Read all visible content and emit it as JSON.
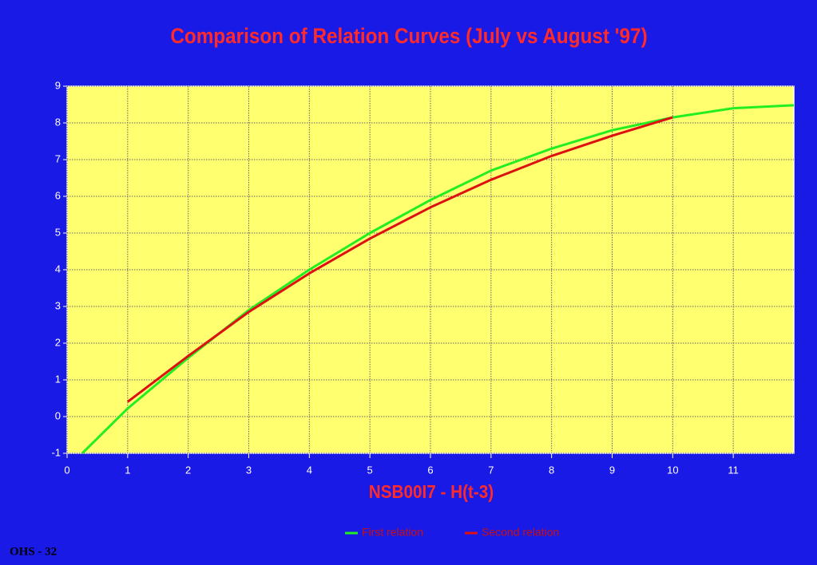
{
  "chart_data": {
    "type": "line",
    "title": "Comparison of Relation Curves (July vs August '97)",
    "x_label": "NSB00I7 - H(t-3)",
    "x": [
      0.25,
      1,
      2,
      3,
      4,
      5,
      6,
      7,
      8,
      9,
      10,
      11,
      12
    ],
    "series": [
      {
        "name": "First relation",
        "color": "#22ee22",
        "values": [
          -1,
          0.22,
          1.6,
          2.9,
          4.0,
          5.0,
          5.9,
          6.7,
          7.3,
          7.8,
          8.15,
          8.4,
          8.48
        ]
      },
      {
        "name": "Second relation",
        "color": "#dd1111",
        "values": [
          null,
          0.4,
          1.65,
          2.85,
          3.9,
          4.85,
          5.7,
          6.45,
          7.1,
          7.65,
          8.15,
          null,
          null
        ]
      }
    ],
    "xlim": [
      0,
      12
    ],
    "xticks": [
      0,
      1,
      2,
      3,
      4,
      5,
      6,
      7,
      8,
      9,
      10,
      11
    ],
    "ylim": [
      -1,
      9
    ],
    "yticks": [
      -1,
      0,
      1,
      2,
      3,
      4,
      5,
      6,
      7,
      8,
      9
    ],
    "grid": true,
    "legend": "bottom",
    "footer": "OHS - 32"
  }
}
